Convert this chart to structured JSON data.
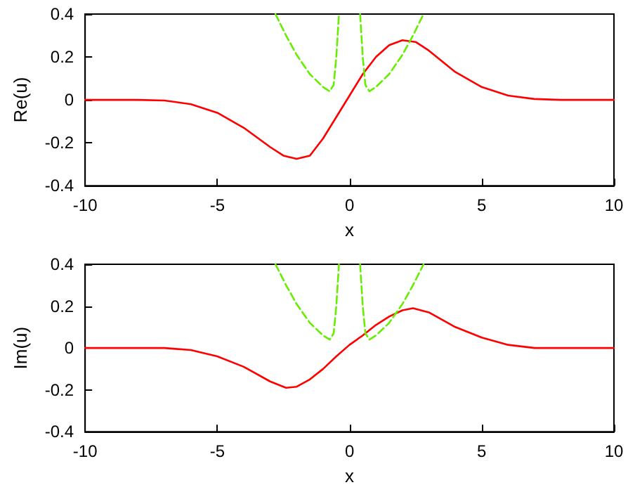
{
  "chart_data": [
    {
      "type": "line",
      "xlabel": "x",
      "ylabel": "Re(u)",
      "xlim": [
        -10,
        10
      ],
      "ylim": [
        -0.4,
        0.4
      ],
      "xticks": [
        -10,
        -5,
        0,
        5,
        10
      ],
      "yticks": [
        -0.4,
        -0.2,
        0,
        0.2,
        0.4
      ],
      "grid": false,
      "marker": "none",
      "series": [
        {
          "color": "#ff0000",
          "line_style": "solid",
          "x": [
            -10,
            -8,
            -7,
            -6,
            -5,
            -4,
            -3,
            -2.5,
            -2,
            -1.5,
            -1,
            -0.5,
            0,
            0.5,
            1,
            1.5,
            2,
            2.5,
            3,
            4,
            5,
            6,
            7,
            8,
            10
          ],
          "values": [
            0,
            0,
            -0.003,
            -0.02,
            -0.06,
            -0.13,
            -0.22,
            -0.26,
            -0.275,
            -0.26,
            -0.18,
            -0.08,
            0.02,
            0.12,
            0.2,
            0.255,
            0.278,
            0.27,
            0.23,
            0.13,
            0.06,
            0.02,
            0.004,
            0,
            0
          ]
        },
        {
          "color": "#66ee00",
          "line_style": "dashed",
          "x": [
            -2.8,
            -2.4,
            -2,
            -1.5,
            -1,
            -0.75,
            -0.6,
            -0.5,
            -0.4,
            0,
            0.4,
            0.5,
            0.6,
            0.75,
            1,
            1.5,
            2,
            2.4,
            2.8
          ],
          "values": [
            0.4,
            0.3,
            0.21,
            0.12,
            0.06,
            0.04,
            0.07,
            0.2,
            0.4,
            null,
            0.4,
            0.2,
            0.07,
            0.04,
            0.06,
            0.12,
            0.21,
            0.3,
            0.4
          ]
        }
      ]
    },
    {
      "type": "line",
      "xlabel": "x",
      "ylabel": "Im(u)",
      "xlim": [
        -10,
        10
      ],
      "ylim": [
        -0.4,
        0.4
      ],
      "xticks": [
        -10,
        -5,
        0,
        5,
        10
      ],
      "yticks": [
        -0.4,
        -0.2,
        0,
        0.2,
        0.4
      ],
      "grid": false,
      "marker": "none",
      "series": [
        {
          "color": "#ff0000",
          "line_style": "solid",
          "x": [
            -10,
            -7,
            -6,
            -5,
            -4,
            -3,
            -2.4,
            -2,
            -1.5,
            -1,
            -0.5,
            0,
            0.5,
            1,
            1.5,
            2,
            2.4,
            3,
            4,
            5,
            6,
            7,
            10
          ],
          "values": [
            0,
            0,
            -0.01,
            -0.04,
            -0.09,
            -0.16,
            -0.19,
            -0.185,
            -0.15,
            -0.1,
            -0.04,
            0.015,
            0.06,
            0.11,
            0.15,
            0.18,
            0.19,
            0.17,
            0.1,
            0.05,
            0.015,
            0,
            0
          ]
        },
        {
          "color": "#66ee00",
          "line_style": "dashed",
          "x": [
            -2.8,
            -2.4,
            -2,
            -1.5,
            -1,
            -0.75,
            -0.6,
            -0.5,
            -0.4,
            0,
            0.4,
            0.5,
            0.6,
            0.75,
            1,
            1.5,
            2,
            2.4,
            2.8
          ],
          "values": [
            0.4,
            0.3,
            0.21,
            0.12,
            0.06,
            0.04,
            0.07,
            0.2,
            0.4,
            null,
            0.4,
            0.2,
            0.07,
            0.04,
            0.06,
            0.12,
            0.21,
            0.3,
            0.4
          ]
        }
      ]
    }
  ]
}
